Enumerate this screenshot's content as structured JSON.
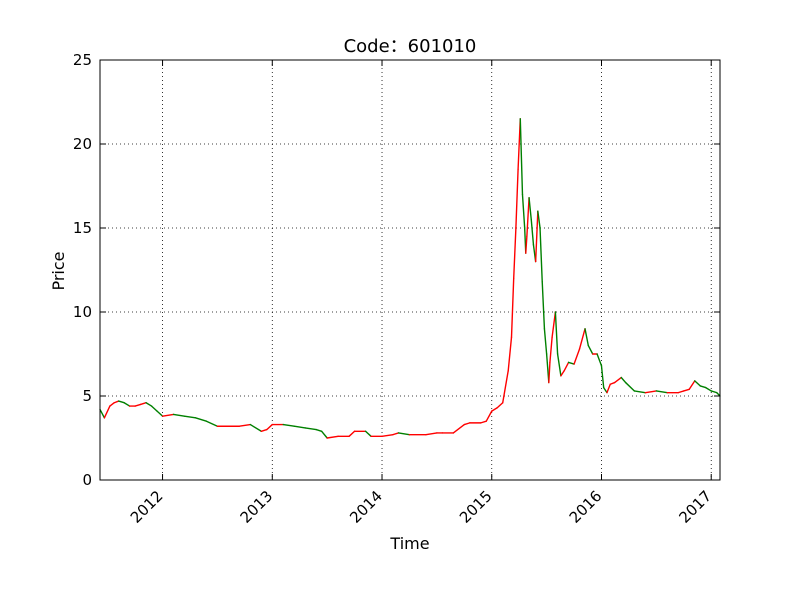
{
  "chart_data": {
    "type": "line",
    "title": "Code：601010",
    "xlabel": "Time",
    "ylabel": "Price",
    "xlim": [
      2011.43,
      2017.08
    ],
    "ylim": [
      0,
      25
    ],
    "grid": true,
    "grid_style": "dotted",
    "x_ticks": [
      {
        "value": 2012,
        "label": "2012"
      },
      {
        "value": 2013,
        "label": "2013"
      },
      {
        "value": 2014,
        "label": "2014"
      },
      {
        "value": 2015,
        "label": "2015"
      },
      {
        "value": 2016,
        "label": "2016"
      },
      {
        "value": 2017,
        "label": "2017"
      }
    ],
    "y_ticks": [
      {
        "value": 0,
        "label": "0"
      },
      {
        "value": 5,
        "label": "5"
      },
      {
        "value": 10,
        "label": "10"
      },
      {
        "value": 15,
        "label": "15"
      },
      {
        "value": 20,
        "label": "20"
      },
      {
        "value": 25,
        "label": "25"
      }
    ],
    "colors": {
      "up": "#ff0000",
      "down": "#008000"
    },
    "series": [
      {
        "x": [
          2011.43,
          2011.47,
          2011.52,
          2011.56,
          2011.6,
          2011.65,
          2011.7,
          2011.75,
          2011.8,
          2011.85,
          2011.9,
          2011.95,
          2012.0,
          2012.1,
          2012.2,
          2012.3,
          2012.4,
          2012.5,
          2012.55,
          2012.7,
          2012.8,
          2012.9,
          2012.95,
          2013.0,
          2013.1,
          2013.2,
          2013.3,
          2013.4,
          2013.45,
          2013.5,
          2013.6,
          2013.7,
          2013.75,
          2013.85,
          2013.9,
          2014.0,
          2014.1,
          2014.15,
          2014.25,
          2014.4,
          2014.5,
          2014.55,
          2014.65,
          2014.75,
          2014.8,
          2014.9,
          2014.95,
          2015.0,
          2015.05,
          2015.1,
          2015.15,
          2015.18,
          2015.2,
          2015.22,
          2015.24,
          2015.26,
          2015.28,
          2015.3,
          2015.31,
          2015.32,
          2015.34,
          2015.36,
          2015.38,
          2015.4,
          2015.42,
          2015.44,
          2015.46,
          2015.48,
          2015.5,
          2015.52,
          2015.53,
          2015.55,
          2015.58,
          2015.6,
          2015.63,
          2015.66,
          2015.7,
          2015.75,
          2015.8,
          2015.85,
          2015.88,
          2015.92,
          2015.96,
          2016.0,
          2016.02,
          2016.05,
          2016.08,
          2016.12,
          2016.18,
          2016.22,
          2016.3,
          2016.4,
          2016.5,
          2016.6,
          2016.7,
          2016.75,
          2016.8,
          2016.85,
          2016.9,
          2016.95,
          2017.0,
          2017.05,
          2017.08
        ],
        "values": [
          4.2,
          3.7,
          4.4,
          4.6,
          4.7,
          4.6,
          4.4,
          4.4,
          4.5,
          4.6,
          4.4,
          4.1,
          3.8,
          3.9,
          3.8,
          3.7,
          3.5,
          3.2,
          3.2,
          3.2,
          3.3,
          2.9,
          3.0,
          3.3,
          3.3,
          3.2,
          3.1,
          3.0,
          2.9,
          2.5,
          2.6,
          2.6,
          2.9,
          2.9,
          2.6,
          2.6,
          2.7,
          2.8,
          2.7,
          2.7,
          2.8,
          2.8,
          2.8,
          3.3,
          3.4,
          3.4,
          3.5,
          4.1,
          4.3,
          4.6,
          6.5,
          8.5,
          12.0,
          15.0,
          18.5,
          21.5,
          17.0,
          15.0,
          13.5,
          14.5,
          16.8,
          15.5,
          14.0,
          13.0,
          16.0,
          15.0,
          11.8,
          9.0,
          7.5,
          5.8,
          7.0,
          8.5,
          10.0,
          7.5,
          6.2,
          6.5,
          7.0,
          6.9,
          7.8,
          9.0,
          8.0,
          7.5,
          7.5,
          6.8,
          5.5,
          5.2,
          5.7,
          5.8,
          6.1,
          5.8,
          5.3,
          5.2,
          5.3,
          5.2,
          5.2,
          5.3,
          5.4,
          5.9,
          5.6,
          5.5,
          5.3,
          5.2,
          5.0
        ]
      }
    ]
  }
}
